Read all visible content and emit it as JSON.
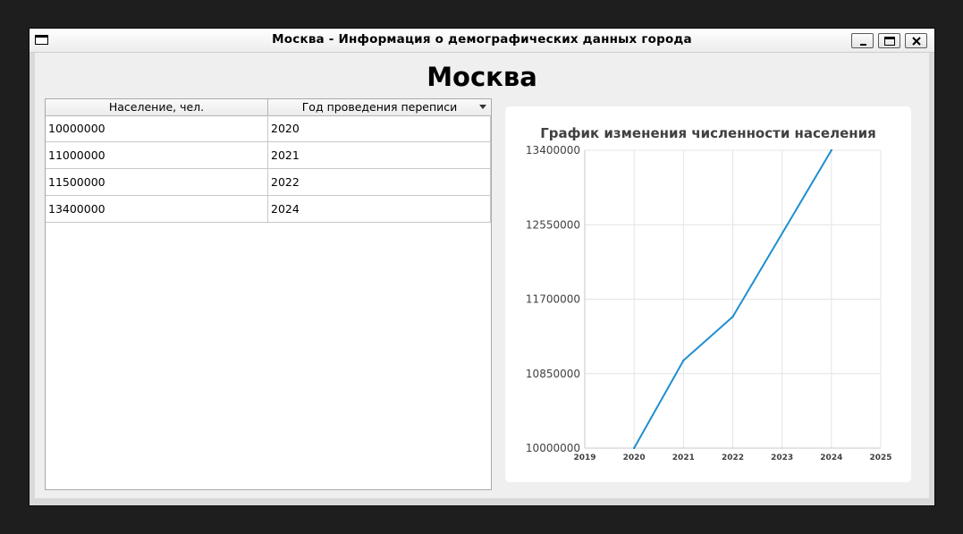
{
  "window": {
    "title": "Москва - Информация о демографических данных города"
  },
  "page": {
    "heading": "Москва"
  },
  "table": {
    "columns": [
      "Население, чел.",
      "Год проведения переписи"
    ],
    "rows": [
      [
        "10000000",
        "2020"
      ],
      [
        "11000000",
        "2021"
      ],
      [
        "11500000",
        "2022"
      ],
      [
        "13400000",
        "2024"
      ]
    ]
  },
  "icons": {
    "minimize": "minimize-icon",
    "maximize": "maximize-icon",
    "close": "close-icon",
    "app": "window-icon"
  },
  "colors": {
    "series": "#1f8fd0",
    "grid": "#e4e4e4"
  },
  "chart_data": {
    "type": "line",
    "title": "График изменения численности населения",
    "xlabel": "",
    "ylabel": "",
    "xlim": [
      2019,
      2025
    ],
    "ylim": [
      10000000,
      13400000
    ],
    "x_ticks": [
      "2019",
      "2020",
      "2021",
      "2022",
      "2023",
      "2024",
      "2025"
    ],
    "y_ticks": [
      "10000000",
      "10850000",
      "11700000",
      "12550000",
      "13400000"
    ],
    "grid": true,
    "series": [
      {
        "x": [
          2020,
          2021,
          2022,
          2024
        ],
        "values": [
          10000000,
          11000000,
          11500000,
          13400000
        ]
      }
    ]
  }
}
